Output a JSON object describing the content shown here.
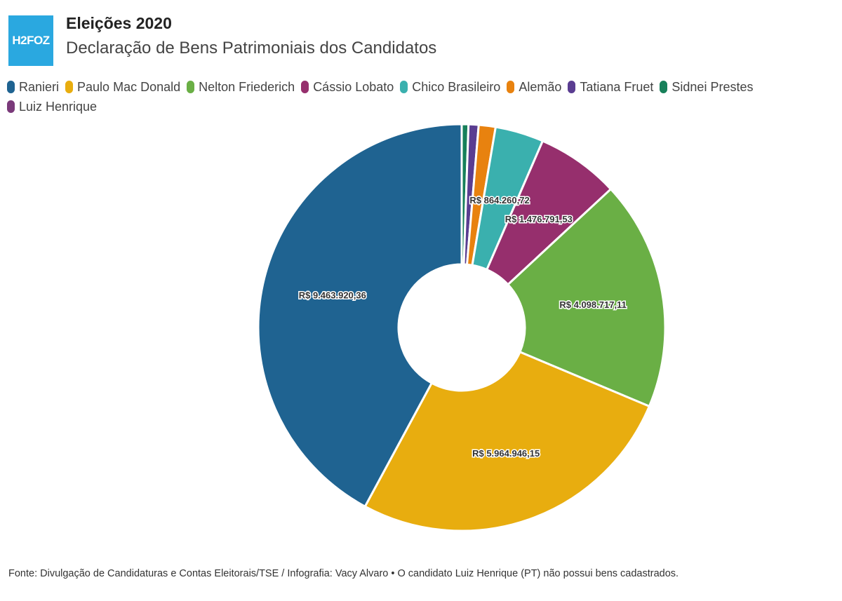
{
  "header": {
    "logo_text": "H2FOZ",
    "title": "Eleições 2020",
    "subtitle": "Declaração de Bens Patrimoniais dos Candidatos"
  },
  "chart_data": {
    "type": "pie",
    "donut": true,
    "title": "Eleições 2020",
    "subtitle": "Declaração de Bens Patrimoniais dos Candidatos",
    "legend_position": "top",
    "legend": [
      "Ranieri",
      "Paulo Mac Donald",
      "Nelton Friederich",
      "Cássio Lobato",
      "Chico Brasileiro",
      "Alemão",
      "Tatiana Fruet",
      "Sidnei Prestes",
      "Luiz Henrique"
    ],
    "slices": [
      {
        "name": "Ranieri",
        "value": 9463920.36,
        "label": "R$ 9.463.920,36",
        "color": "#1f6391"
      },
      {
        "name": "Paulo Mac Donald",
        "value": 5964946.15,
        "label": "R$ 5.964.946,15",
        "color": "#e8ad0f"
      },
      {
        "name": "Nelton Friederich",
        "value": 4098717.11,
        "label": "R$ 4.098.717,11",
        "color": "#6aaf45"
      },
      {
        "name": "Cássio Lobato",
        "value": 1476791.53,
        "label": "R$ 1.476.791,53",
        "color": "#962f6d"
      },
      {
        "name": "Chico Brasileiro",
        "value": 864260.72,
        "label": "R$ 864.260,72",
        "color": "#3ab0ae"
      },
      {
        "name": "Alemão",
        "value": 300000,
        "label": "",
        "color": "#e8820f"
      },
      {
        "name": "Tatiana Fruet",
        "value": 180000,
        "label": "",
        "color": "#5a3d91"
      },
      {
        "name": "Sidnei Prestes",
        "value": 120000,
        "label": "",
        "color": "#17805a"
      },
      {
        "name": "Luiz Henrique",
        "value": 0,
        "label": "",
        "color": "#7a3a7a"
      }
    ]
  },
  "footer": "Fonte: Divulgação de Candidaturas e Contas Eleitorais/TSE / Infografia: Vacy Alvaro • O candidato Luiz Henrique (PT) não possui bens cadastrados."
}
